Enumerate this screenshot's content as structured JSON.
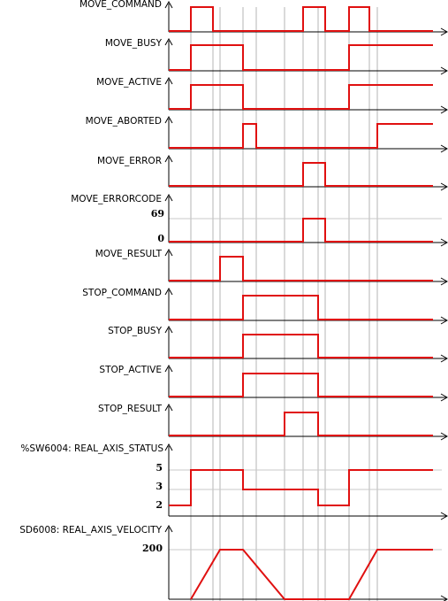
{
  "signals": [
    {
      "id": "move-command",
      "label": "MOVE_COMMAND",
      "trace": [
        [
          0,
          0
        ],
        [
          0,
          0
        ],
        [
          0,
          1
        ],
        [
          0,
          1
        ],
        [
          0,
          0
        ],
        [
          0,
          0
        ],
        [
          0,
          1
        ],
        [
          0,
          1
        ],
        [
          0,
          0
        ],
        [
          0,
          0
        ],
        [
          0,
          1
        ],
        [
          0,
          1
        ],
        [
          0,
          0
        ]
      ]
    },
    {
      "id": "move-busy",
      "label": "MOVE_BUSY"
    },
    {
      "id": "move-active",
      "label": "MOVE_ACTIVE"
    },
    {
      "id": "move-aborted",
      "label": "MOVE_ABORTED"
    },
    {
      "id": "move-error",
      "label": "MOVE_ERROR"
    },
    {
      "id": "move-errorcode",
      "label": "MOVE_ERRORCODE",
      "levels": [
        "69",
        "0"
      ]
    },
    {
      "id": "move-result",
      "label": "MOVE_RESULT"
    },
    {
      "id": "stop-command",
      "label": "STOP_COMMAND"
    },
    {
      "id": "stop-busy",
      "label": "STOP_BUSY"
    },
    {
      "id": "stop-active",
      "label": "STOP_ACTIVE"
    },
    {
      "id": "stop-result",
      "label": "STOP_RESULT"
    },
    {
      "id": "real-axis-status",
      "label": "%SW6004: REAL_AXIS_STATUS",
      "levels": [
        "5",
        "3",
        "2"
      ]
    },
    {
      "id": "real-axis-velocity",
      "label": "SD6008: REAL_AXIS_VELOCITY",
      "levels": [
        "200"
      ]
    }
  ],
  "colors": {
    "signal": "#e01010",
    "axis": "#000000",
    "grid": "#b4b4b4"
  }
}
